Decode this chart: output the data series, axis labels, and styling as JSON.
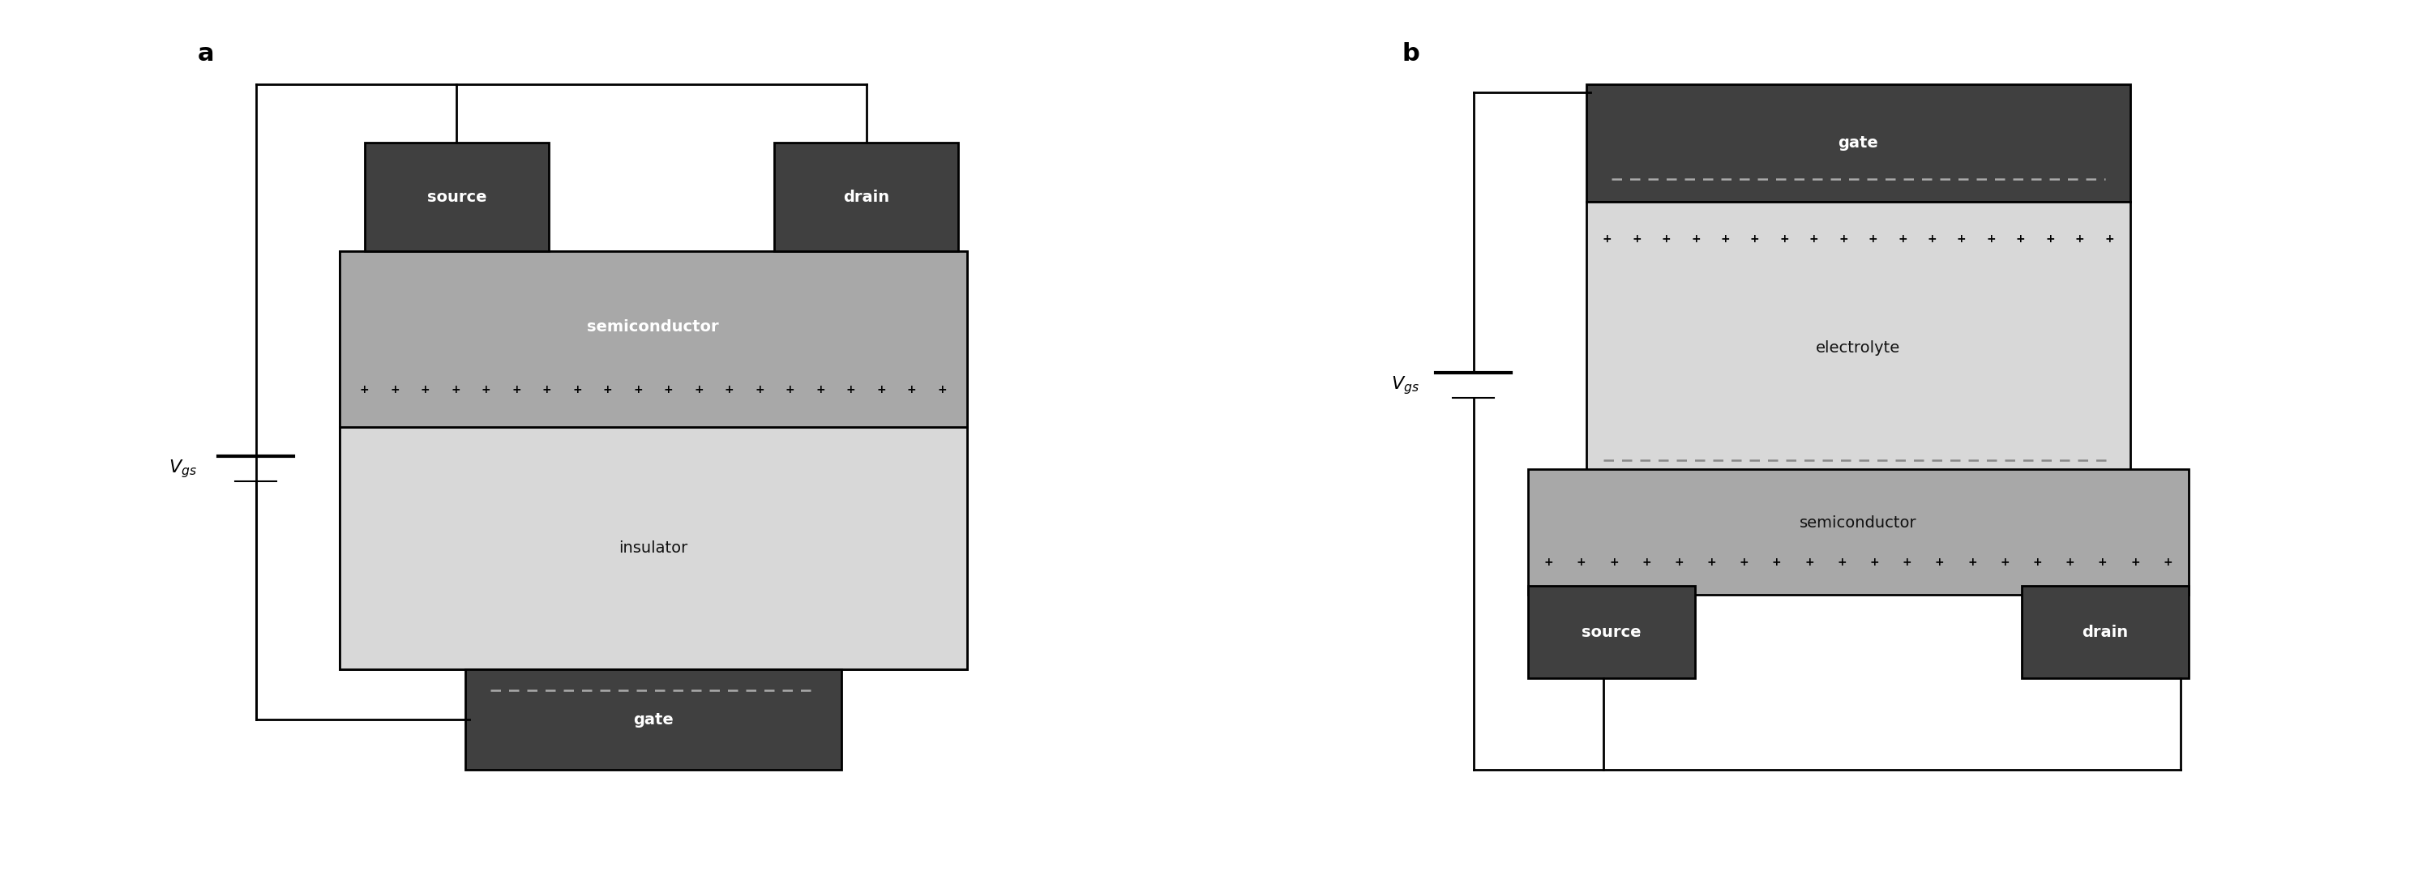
{
  "fig_width": 29.73,
  "fig_height": 10.75,
  "bg_color": "#ffffff",
  "dark_gray": "#404040",
  "medium_gray": "#a8a8a8",
  "light_gray": "#d8d8d8",
  "line_color": "#000000",
  "white": "#ffffff",
  "label_a": "a",
  "label_b": "b",
  "source_label": "source",
  "drain_label": "drain",
  "gate_label": "gate",
  "semiconductor_label": "semiconductor",
  "insulator_label": "insulator",
  "electrolyte_label": "electrolyte",
  "vgs_label": "$V_{gs}$",
  "font_size_label": 18,
  "font_size_block": 14,
  "font_size_ab": 22
}
